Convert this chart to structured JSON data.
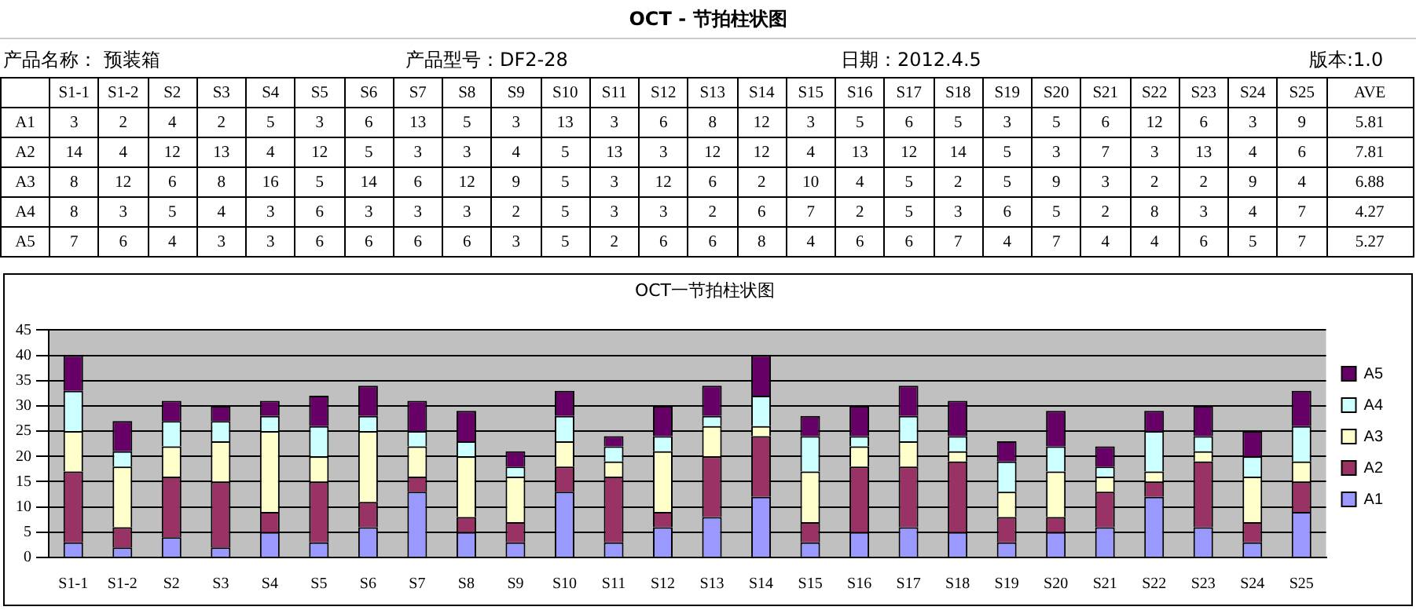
{
  "chart_data": {
    "type": "bar",
    "title": "OCT - 节拍柱状图",
    "subtitle": "OCT一节拍柱状图",
    "categories": [
      "S1-1",
      "S1-2",
      "S2",
      "S3",
      "S4",
      "S5",
      "S6",
      "S7",
      "S8",
      "S9",
      "S10",
      "S11",
      "S12",
      "S13",
      "S14",
      "S15",
      "S16",
      "S17",
      "S18",
      "S19",
      "S20",
      "S21",
      "S22",
      "S23",
      "S24",
      "S25"
    ],
    "series": [
      {
        "name": "A1",
        "color": "#9999ff",
        "values": [
          3,
          2,
          4,
          2,
          5,
          3,
          6,
          13,
          5,
          3,
          13,
          3,
          6,
          8,
          12,
          3,
          5,
          6,
          5,
          3,
          5,
          6,
          12,
          6,
          3,
          9
        ],
        "value_labels": [
          "3",
          "2",
          "4",
          "2",
          "5",
          "3",
          "6",
          "13",
          "5",
          "3",
          "13",
          "3",
          "6",
          "8",
          "12",
          "3",
          "5",
          "6",
          "5",
          "3",
          "5",
          "6",
          "12",
          "6",
          "3",
          "9"
        ]
      },
      {
        "name": "A2",
        "color": "#993366",
        "values": [
          14,
          4,
          12,
          13,
          4,
          12,
          5,
          3,
          3,
          4,
          5,
          13,
          3,
          12,
          12,
          4,
          13,
          12,
          14,
          5,
          3,
          7,
          3,
          13,
          4,
          6
        ],
        "value_labels": [
          "14",
          "4",
          "12",
          "13",
          "4",
          "12",
          "5",
          "3",
          "3",
          "4",
          "5",
          "13",
          "3",
          "12",
          "12",
          "4",
          "13",
          "12",
          "14",
          "5",
          "3",
          "7",
          "3",
          "13",
          "4",
          "6"
        ]
      },
      {
        "name": "A3",
        "color": "#ffffcc",
        "values": [
          8,
          12,
          6,
          8,
          16,
          5,
          14,
          6,
          12,
          9,
          5,
          3,
          12,
          6,
          2,
          10,
          4,
          5,
          2,
          5,
          9,
          3,
          2,
          2,
          9,
          4
        ],
        "value_labels": [
          "8",
          "12",
          "6",
          "8",
          "16",
          "5",
          "14",
          "6",
          "12",
          "9",
          "5",
          "3",
          "12",
          "6",
          "2",
          "10",
          "4",
          "5",
          "2",
          "5",
          "9",
          "3",
          "2",
          "2",
          "9",
          "4"
        ]
      },
      {
        "name": "A4",
        "color": "#ccffff",
        "values": [
          8,
          3,
          5,
          4,
          3,
          6,
          3,
          3,
          3,
          2,
          5,
          3,
          3,
          2,
          6,
          7,
          2,
          5,
          3,
          6,
          5,
          2,
          8,
          3,
          4,
          7
        ],
        "value_labels": [
          "8",
          "3",
          "5",
          "4",
          "3",
          "6",
          "3",
          "3",
          "3",
          "2",
          "5",
          "3",
          "3",
          "2",
          "6",
          "7",
          "2",
          "5",
          "3",
          "6",
          "5",
          "2",
          "8",
          "3",
          "4",
          "7"
        ]
      },
      {
        "name": "A5",
        "color": "#660066",
        "values": [
          7,
          6,
          4,
          3,
          3,
          6,
          6,
          6,
          6,
          3,
          5,
          2,
          6,
          6,
          8,
          4,
          6,
          6,
          7,
          4,
          7,
          4,
          4,
          6,
          5,
          7
        ],
        "value_labels": [
          "7",
          "6",
          "4",
          "3",
          "3",
          "6",
          "6",
          "6",
          "6",
          "3",
          "5",
          "2",
          "6",
          "6",
          "8",
          "4",
          "6",
          "6",
          "7",
          "4",
          "7",
          "4",
          "4",
          "6",
          "5",
          "7"
        ]
      }
    ],
    "stacked": true,
    "ylim": [
      0,
      45
    ],
    "yticks": [
      0,
      5,
      10,
      15,
      20,
      25,
      30,
      35,
      40,
      45
    ],
    "grid": "y",
    "legend": "right",
    "annotations": [
      "产品名称：  预装箱",
      "产品型号：DF2-28",
      "日期：2012.4.5",
      "版本:1.0",
      "AVE",
      "5.81",
      "7.81",
      "6.88",
      "4.27",
      "5.27"
    ]
  }
}
